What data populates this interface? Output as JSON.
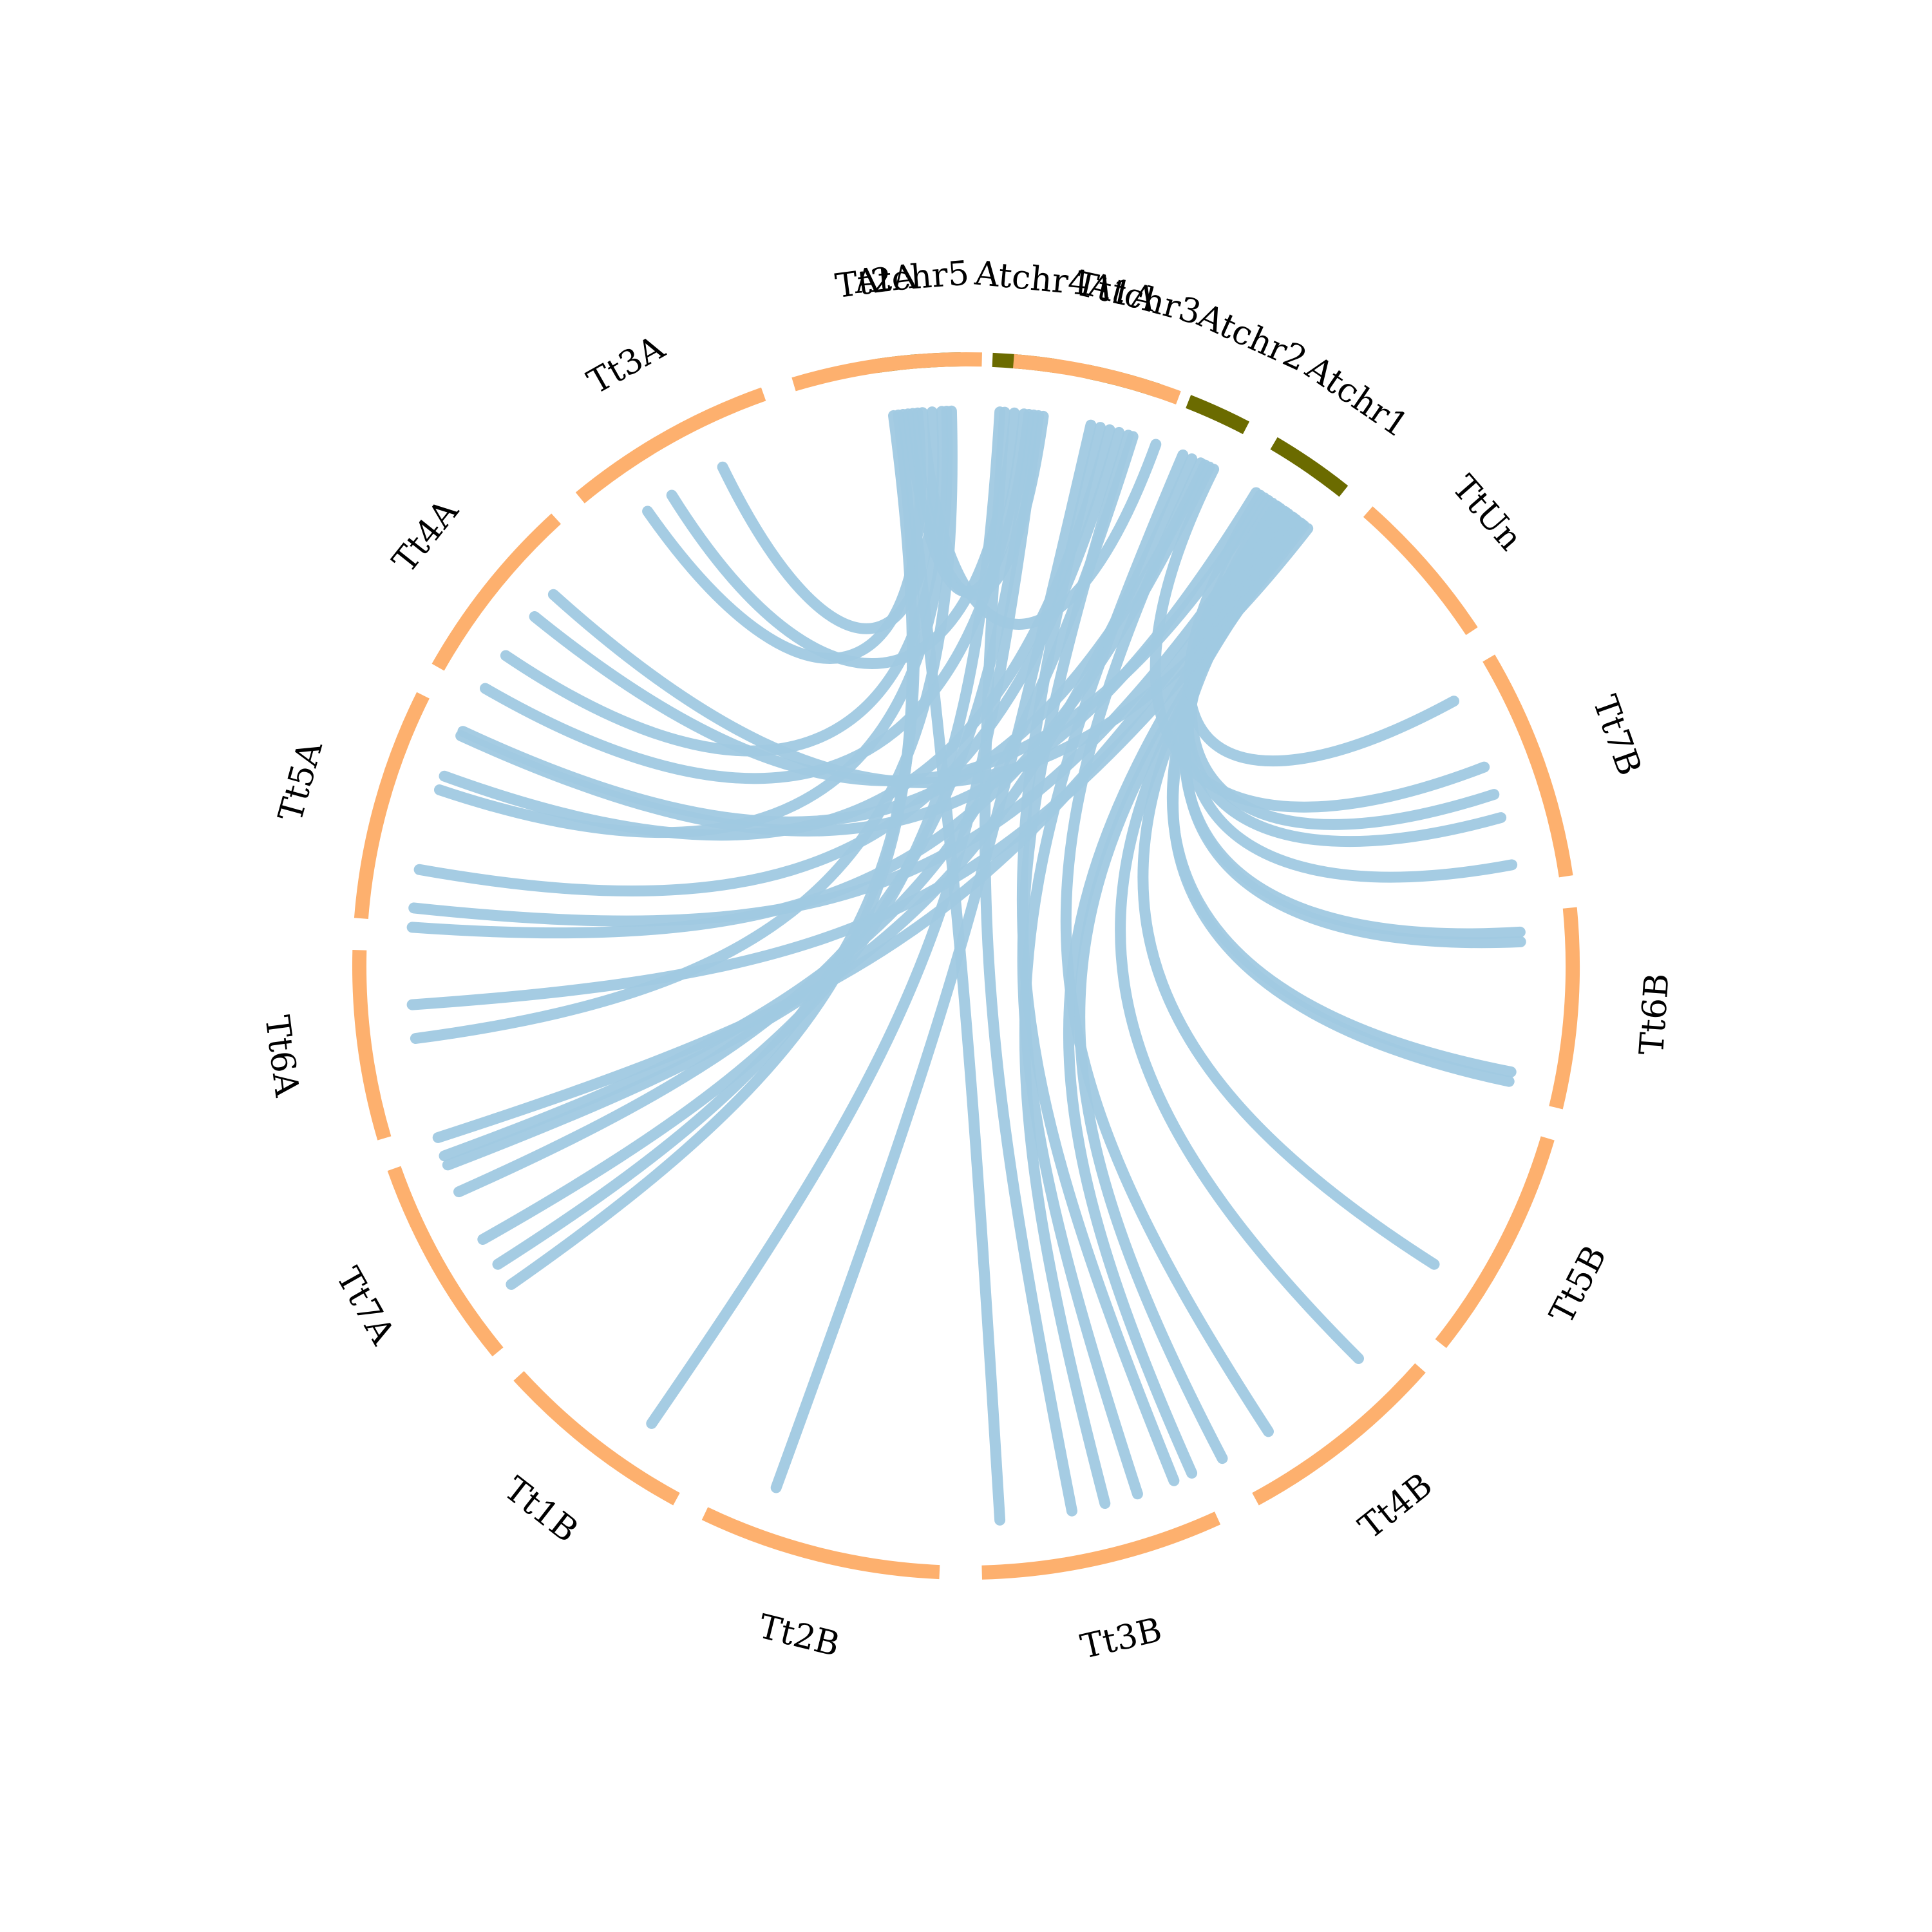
{
  "chart_data": {
    "type": "circos",
    "title": "",
    "colors": {
      "arabidopsis": "#6b6b00",
      "wheat": "#fdb06e",
      "link": "#a0c9e2"
    },
    "chromosomes": [
      {
        "id": "Atchr5",
        "label": "Atchr5",
        "group": "arabidopsis",
        "start": 98.5,
        "end": 90.5
      },
      {
        "id": "Atchr4",
        "label": "Atchr4",
        "group": "arabidopsis",
        "start": 87.5,
        "end": 81.5
      },
      {
        "id": "Atchr3",
        "label": "Atchr3",
        "group": "arabidopsis",
        "start": 78.5,
        "end": 71.5
      },
      {
        "id": "Atchr2",
        "label": "Atchr2",
        "group": "arabidopsis",
        "start": 68.5,
        "end": 62.5
      },
      {
        "id": "Atchr1",
        "label": "Atchr1",
        "group": "arabidopsis",
        "start": 59.5,
        "end": 51.5
      },
      {
        "id": "TtUn",
        "label": "TtUn",
        "group": "wheat",
        "start": 48.5,
        "end": 33.5
      },
      {
        "id": "Tt7B",
        "label": "Tt7B",
        "group": "wheat",
        "start": 30.5,
        "end": 8.5
      },
      {
        "id": "Tt6B",
        "label": "Tt6B",
        "group": "wheat",
        "start": 5.5,
        "end": -13.5
      },
      {
        "id": "Tt5B",
        "label": "Tt5B",
        "group": "wheat",
        "start": -16.5,
        "end": -38.5
      },
      {
        "id": "Tt4B",
        "label": "Tt4B",
        "group": "wheat",
        "start": -41.5,
        "end": -61.5
      },
      {
        "id": "Tt3B",
        "label": "Tt3B",
        "group": "wheat",
        "start": -65.5,
        "end": -88.5
      },
      {
        "id": "Tt2B",
        "label": "Tt2B",
        "group": "wheat",
        "start": -92.5,
        "end": -115.5
      },
      {
        "id": "Tt1B",
        "label": "Tt1B",
        "group": "wheat",
        "start": -118.5,
        "end": -137.5
      },
      {
        "id": "Tt7A",
        "label": "Tt7A",
        "group": "wheat",
        "start": -140.5,
        "end": -160.5
      },
      {
        "id": "Tt6A",
        "label": "Tt6A",
        "group": "wheat",
        "start": -163.5,
        "end": -181.5
      },
      {
        "id": "Tt5A",
        "label": "Tt5A",
        "group": "wheat",
        "start": -184.5,
        "end": -206.5
      },
      {
        "id": "Tt4A",
        "label": "Tt4A",
        "group": "wheat",
        "start": -209.5,
        "end": -227.5
      },
      {
        "id": "Tt3A",
        "label": "Tt3A",
        "group": "wheat",
        "start": -230.5,
        "end": -250.5
      },
      {
        "id": "Tt2A",
        "label": "Tt2A",
        "group": "wheat",
        "start": -253.5,
        "end": -271.5
      },
      {
        "id": "Tt1A",
        "label": "Tt1A",
        "group": "wheat",
        "start": -274.5,
        "end": -290.5
      }
    ],
    "links": [
      {
        "from": 96.0,
        "to": -276.5
      },
      {
        "from": 95.5,
        "to": -278.0
      },
      {
        "from": 94.5,
        "to": -290.0
      },
      {
        "from": 95.0,
        "to": -235.0
      },
      {
        "from": 93.5,
        "to": -244.0
      },
      {
        "from": 92.5,
        "to": -214.0
      },
      {
        "from": 92.0,
        "to": -198.5
      },
      {
        "from": 91.5,
        "to": -172.5
      },
      {
        "from": 97.0,
        "to": -147.5
      },
      {
        "from": 96.5,
        "to": -86.5
      },
      {
        "from": 97.5,
        "to": -145.0
      },
      {
        "from": 85.0,
        "to": -238.0
      },
      {
        "from": 84.0,
        "to": -210.0
      },
      {
        "from": 83.0,
        "to": -156.0
      },
      {
        "from": 86.0,
        "to": -79.0
      },
      {
        "from": 82.5,
        "to": -124.5
      },
      {
        "from": 86.5,
        "to": -150.5
      },
      {
        "from": 76.0,
        "to": -68.0
      },
      {
        "from": 75.0,
        "to": -200.0
      },
      {
        "from": 74.0,
        "to": -190.0
      },
      {
        "from": 73.0,
        "to": -72.0
      },
      {
        "from": 72.5,
        "to": -160.0
      },
      {
        "from": 77.0,
        "to": -110.0
      },
      {
        "from": 66.0,
        "to": -159.0
      },
      {
        "from": 67.0,
        "to": -75.5
      },
      {
        "from": 65.0,
        "to": -57.0
      },
      {
        "from": 64.5,
        "to": -205.0
      },
      {
        "from": 63.5,
        "to": 21.0
      },
      {
        "from": 64.0,
        "to": -184.0
      },
      {
        "from": 58.0,
        "to": 28.5
      },
      {
        "from": 57.0,
        "to": 15.5
      },
      {
        "from": 56.5,
        "to": 18.0
      },
      {
        "from": 56.0,
        "to": 10.5
      },
      {
        "from": 55.5,
        "to": 3.5
      },
      {
        "from": 55.0,
        "to": 2.5
      },
      {
        "from": 54.5,
        "to": -11.0
      },
      {
        "from": 54.0,
        "to": -12.0
      },
      {
        "from": 53.5,
        "to": -32.5
      },
      {
        "from": 53.0,
        "to": -45.0
      },
      {
        "from": 52.5,
        "to": -176.0
      },
      {
        "from": 58.5,
        "to": -204.5
      },
      {
        "from": 57.5,
        "to": -219.0
      },
      {
        "from": 52.0,
        "to": -222.0
      },
      {
        "from": 54.8,
        "to": -162.0
      },
      {
        "from": 55.8,
        "to": -186.0
      },
      {
        "from": 53.8,
        "to": -66.0
      },
      {
        "from": 52.8,
        "to": -62.5
      }
    ]
  }
}
